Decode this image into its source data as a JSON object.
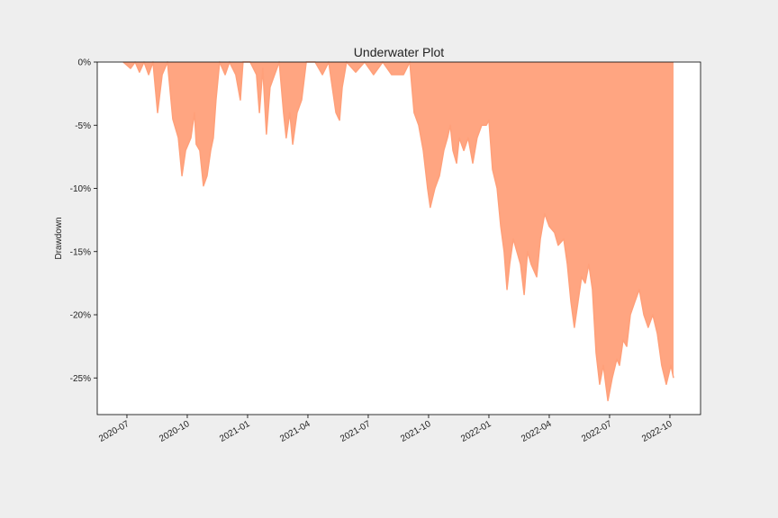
{
  "chart_data": {
    "type": "area",
    "title": "Underwater Plot",
    "y_label": "Drawdown",
    "color": "#ffa07a",
    "x": [
      2020.485,
      2020.515,
      2020.534,
      2020.552,
      2020.571,
      2020.59,
      2020.608,
      2020.627,
      2020.646,
      2020.668,
      2020.69,
      2020.713,
      2020.728,
      2020.743,
      2020.765,
      2020.78,
      2020.787,
      2020.802,
      2020.817,
      2020.832,
      2020.847,
      2020.858,
      2020.869,
      2020.884,
      2020.907,
      2020.925,
      2020.951,
      2020.97,
      2020.981,
      2021.011,
      2021.037,
      2021.049,
      2021.063,
      2021.078,
      2021.093,
      2021.112,
      2021.131,
      2021.149,
      2021.16,
      2021.175,
      2021.187,
      2021.205,
      2021.224,
      2021.243,
      2021.28,
      2021.31,
      2021.336,
      2021.366,
      2021.381,
      2021.392,
      2021.41,
      2021.448,
      2021.485,
      2021.522,
      2021.56,
      2021.597,
      2021.646,
      2021.672,
      2021.69,
      2021.709,
      2021.728,
      2021.746,
      2021.757,
      2021.776,
      2021.795,
      2021.813,
      2021.828,
      2021.84,
      2021.851,
      2021.866,
      2021.877,
      2021.896,
      2021.914,
      2021.933,
      2021.951,
      2021.97,
      2021.989,
      2022.0,
      2022.015,
      2022.034,
      2022.049,
      2022.063,
      2022.075,
      2022.086,
      2022.101,
      2022.116,
      2022.131,
      2022.146,
      2022.16,
      2022.175,
      2022.198,
      2022.213,
      2022.231,
      2022.25,
      2022.272,
      2022.287,
      2022.31,
      2022.325,
      2022.34,
      2022.354,
      2022.369,
      2022.384,
      2022.399,
      2022.414,
      2022.429,
      2022.444,
      2022.459,
      2022.474,
      2022.493,
      2022.511,
      2022.53,
      2022.541,
      2022.556,
      2022.571,
      2022.586,
      2022.604,
      2022.623,
      2022.642,
      2022.66,
      2022.679,
      2022.698,
      2022.716,
      2022.735,
      2022.754,
      2022.765
    ],
    "values": [
      0,
      -0.5,
      0,
      -0.8,
      0,
      -1,
      0,
      -4,
      -1,
      0,
      -4.5,
      -6,
      -9,
      -7,
      -6,
      -4,
      -6.5,
      -7,
      -9.8,
      -9,
      -7,
      -6,
      -3,
      0,
      -1,
      0,
      -1,
      -3,
      0,
      0,
      -1,
      -4,
      -0.5,
      -5.7,
      -2,
      -1,
      0,
      -4,
      -6,
      -4,
      -6.5,
      -4,
      -3,
      0,
      0,
      -1,
      0,
      -4,
      -4.6,
      -2,
      0,
      -0.8,
      0,
      -1,
      0,
      -1,
      -1,
      0,
      -4,
      -5,
      -7,
      -10,
      -11.5,
      -10,
      -9,
      -7,
      -6,
      -5,
      -7,
      -8,
      -6,
      -7,
      -6,
      -8,
      -6,
      -5,
      -5,
      -4.6,
      -8.5,
      -10,
      -13,
      -15,
      -18,
      -16,
      -14,
      -15,
      -16,
      -18.4,
      -15,
      -16,
      -17,
      -14,
      -12,
      -13,
      -13.5,
      -14.5,
      -14,
      -16,
      -19,
      -21,
      -19,
      -17,
      -17.5,
      -16,
      -18,
      -23,
      -25.5,
      -24,
      -26.8,
      -25,
      -23.5,
      -24,
      -22,
      -22.5,
      -20,
      -19,
      -18,
      -20,
      -21,
      -20,
      -21.5,
      -24,
      -25.5,
      -24,
      -25
    ],
    "xlim": [
      2020.377,
      2022.877
    ],
    "xticks": [
      {
        "value": 2020.5,
        "label": "2020-07"
      },
      {
        "value": 2020.75,
        "label": "2020-10"
      },
      {
        "value": 2021.0,
        "label": "2021-01"
      },
      {
        "value": 2021.25,
        "label": "2021-04"
      },
      {
        "value": 2021.5,
        "label": "2021-07"
      },
      {
        "value": 2021.75,
        "label": "2021-10"
      },
      {
        "value": 2022.0,
        "label": "2022-01"
      },
      {
        "value": 2022.25,
        "label": "2022-04"
      },
      {
        "value": 2022.5,
        "label": "2022-07"
      },
      {
        "value": 2022.75,
        "label": "2022-10"
      }
    ],
    "ylim": [
      -27.9,
      0
    ],
    "yticks": [
      {
        "value": 0,
        "label": "0%"
      },
      {
        "value": -5,
        "label": "-5%"
      },
      {
        "value": -10,
        "label": "-10%"
      },
      {
        "value": -15,
        "label": "-15%"
      },
      {
        "value": -20,
        "label": "-20%"
      },
      {
        "value": -25,
        "label": "-25%"
      }
    ],
    "grid": false
  }
}
